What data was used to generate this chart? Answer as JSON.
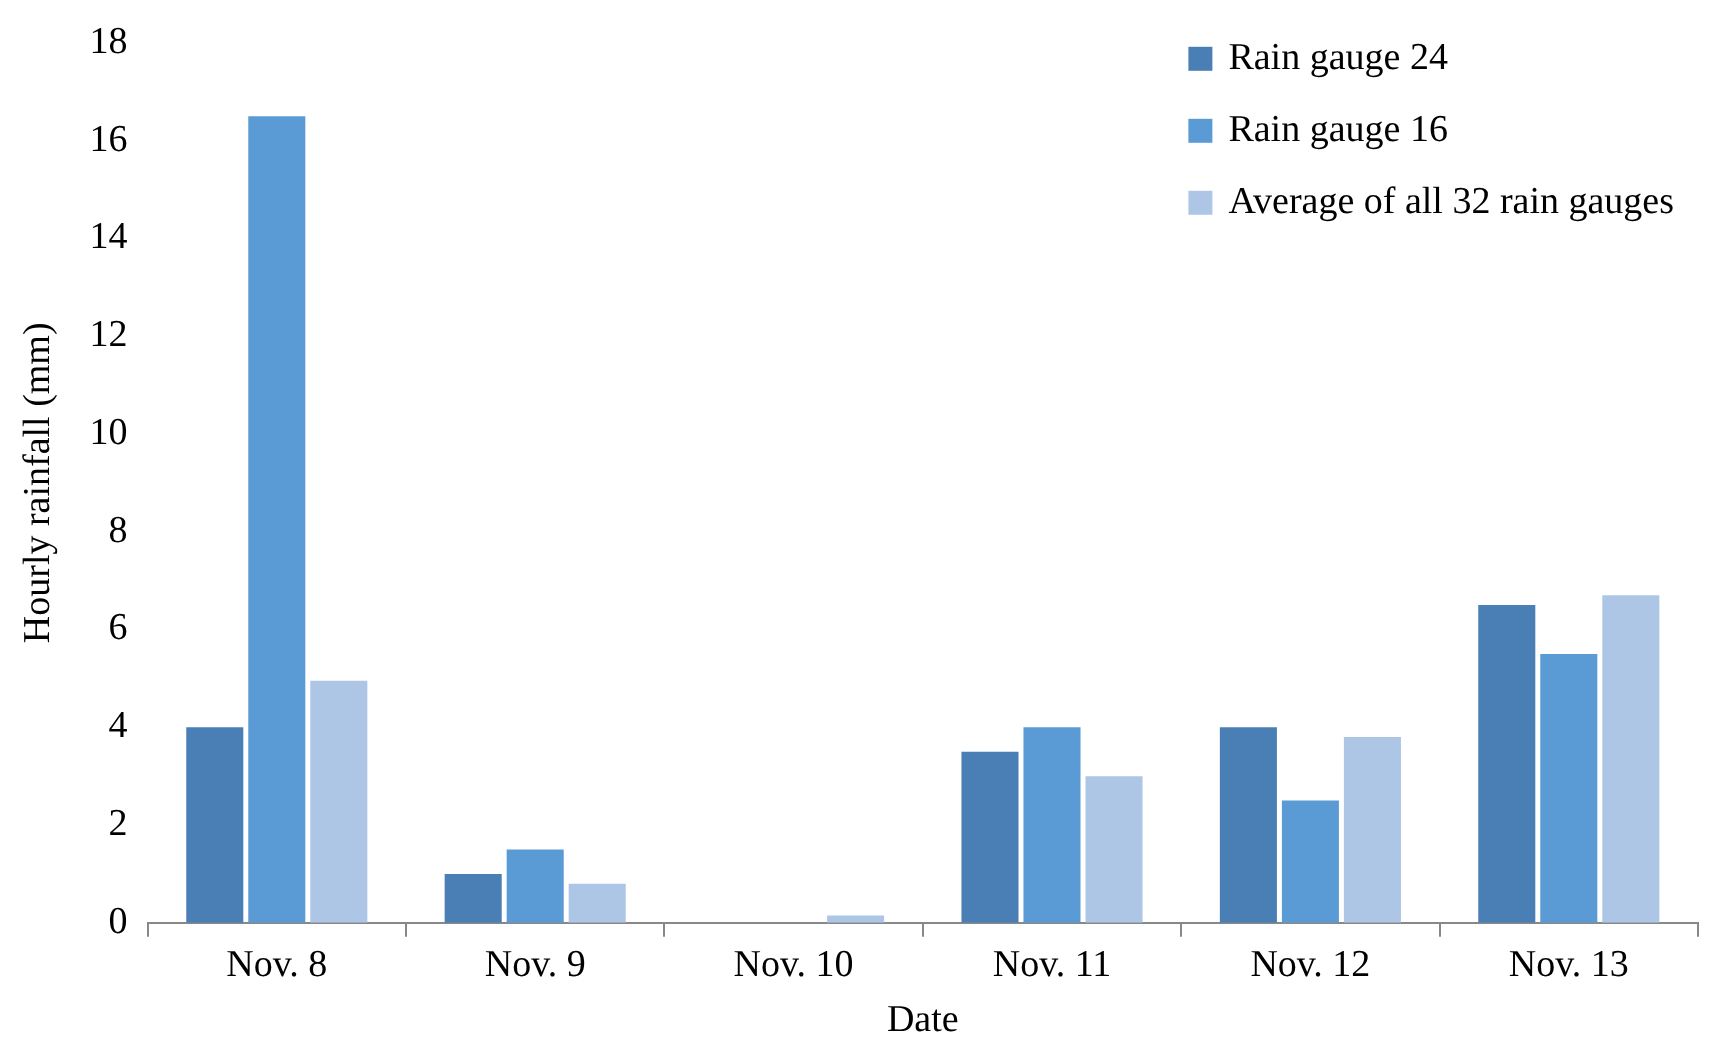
{
  "chart_data": {
    "type": "bar",
    "xlabel": "Date",
    "ylabel": "Hourly rainfall (mm)",
    "categories": [
      "Nov. 8",
      "Nov. 9",
      "Nov. 10",
      "Nov. 11",
      "Nov. 12",
      "Nov. 13"
    ],
    "series": [
      {
        "name": "Rain gauge 24",
        "color": "#4a7fb5",
        "values": [
          4,
          1,
          0,
          3.5,
          4,
          6.5
        ]
      },
      {
        "name": "Rain gauge 16",
        "color": "#5b9bd5",
        "values": [
          16.5,
          1.5,
          0,
          4,
          2.5,
          5.5
        ]
      },
      {
        "name": "Average of all 32 rain gauges",
        "color": "#adc6e5",
        "values": [
          4.95,
          0.8,
          0.15,
          3,
          3.8,
          6.7
        ]
      }
    ],
    "ylim": [
      0,
      18
    ],
    "yticks": [
      0,
      2,
      4,
      6,
      8,
      10,
      12,
      14,
      16,
      18
    ],
    "grid": false,
    "legend": "top right"
  }
}
